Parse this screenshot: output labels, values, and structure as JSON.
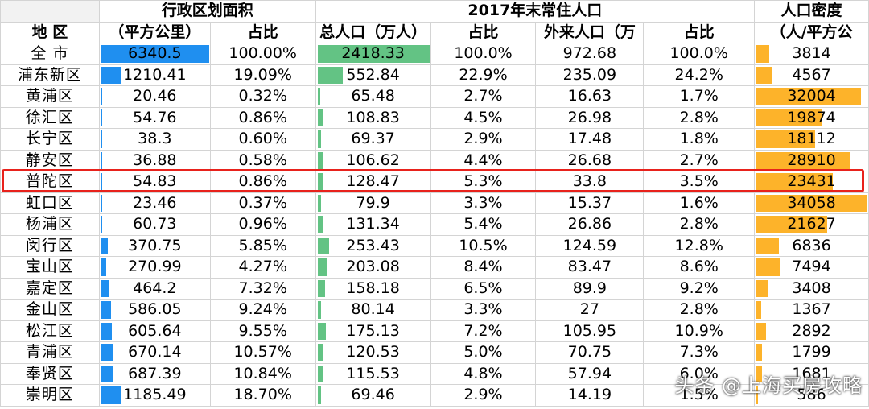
{
  "headers": {
    "area_group": "行政区划面积",
    "pop_group": "2017年末常住人口",
    "density_group": "人口密度",
    "district": "地  区",
    "area_unit": "（平方公里）",
    "area_share": "占比",
    "total_pop": "总人口（万人）",
    "total_share": "占比",
    "migrant_pop": "外来人口（万",
    "migrant_share": "占比",
    "density_unit": "（人/平方公"
  },
  "max": {
    "area": 6340.5,
    "pop": 2418.33,
    "density": 34058
  },
  "rows": [
    {
      "name": "全  市",
      "area": "6340.5",
      "area_pct": "100.00%",
      "pop": "2418.33",
      "pop_pct": "100.0%",
      "mig": "972.68",
      "mig_pct": "100.0%",
      "dens": "3814"
    },
    {
      "name": "浦东新区",
      "area": "1210.41",
      "area_pct": "19.09%",
      "pop": "552.84",
      "pop_pct": "22.9%",
      "mig": "235.09",
      "mig_pct": "24.2%",
      "dens": "4567"
    },
    {
      "name": "黄浦区",
      "area": "20.46",
      "area_pct": "0.32%",
      "pop": "65.48",
      "pop_pct": "2.7%",
      "mig": "16.63",
      "mig_pct": "1.7%",
      "dens": "32004"
    },
    {
      "name": "徐汇区",
      "area": "54.76",
      "area_pct": "0.86%",
      "pop": "108.83",
      "pop_pct": "4.5%",
      "mig": "26.98",
      "mig_pct": "2.8%",
      "dens": "19874"
    },
    {
      "name": "长宁区",
      "area": "38.3",
      "area_pct": "0.60%",
      "pop": "69.37",
      "pop_pct": "2.9%",
      "mig": "17.48",
      "mig_pct": "1.8%",
      "dens": "18112"
    },
    {
      "name": "静安区",
      "area": "36.88",
      "area_pct": "0.58%",
      "pop": "106.62",
      "pop_pct": "4.4%",
      "mig": "26.68",
      "mig_pct": "2.7%",
      "dens": "28910"
    },
    {
      "name": "普陀区",
      "area": "54.83",
      "area_pct": "0.86%",
      "pop": "128.47",
      "pop_pct": "5.3%",
      "mig": "33.8",
      "mig_pct": "3.5%",
      "dens": "23431"
    },
    {
      "name": "虹口区",
      "area": "23.46",
      "area_pct": "0.37%",
      "pop": "79.9",
      "pop_pct": "3.3%",
      "mig": "15.37",
      "mig_pct": "1.6%",
      "dens": "34058"
    },
    {
      "name": "杨浦区",
      "area": "60.73",
      "area_pct": "0.96%",
      "pop": "131.34",
      "pop_pct": "5.4%",
      "mig": "26.86",
      "mig_pct": "2.8%",
      "dens": "21627"
    },
    {
      "name": "闵行区",
      "area": "370.75",
      "area_pct": "5.85%",
      "pop": "253.43",
      "pop_pct": "10.5%",
      "mig": "124.59",
      "mig_pct": "12.8%",
      "dens": "6836"
    },
    {
      "name": "宝山区",
      "area": "270.99",
      "area_pct": "4.27%",
      "pop": "203.08",
      "pop_pct": "8.4%",
      "mig": "83.47",
      "mig_pct": "8.6%",
      "dens": "7494"
    },
    {
      "name": "嘉定区",
      "area": "464.2",
      "area_pct": "7.32%",
      "pop": "158.18",
      "pop_pct": "6.5%",
      "mig": "89.9",
      "mig_pct": "9.2%",
      "dens": "3408"
    },
    {
      "name": "金山区",
      "area": "586.05",
      "area_pct": "9.24%",
      "pop": "80.14",
      "pop_pct": "3.3%",
      "mig": "27",
      "mig_pct": "2.8%",
      "dens": "1367"
    },
    {
      "name": "松江区",
      "area": "605.64",
      "area_pct": "9.55%",
      "pop": "175.13",
      "pop_pct": "7.2%",
      "mig": "105.95",
      "mig_pct": "10.9%",
      "dens": "2892"
    },
    {
      "name": "青浦区",
      "area": "670.14",
      "area_pct": "10.57%",
      "pop": "120.53",
      "pop_pct": "5.0%",
      "mig": "70.75",
      "mig_pct": "7.3%",
      "dens": "1799"
    },
    {
      "name": "奉贤区",
      "area": "687.39",
      "area_pct": "10.84%",
      "pop": "115.53",
      "pop_pct": "4.8%",
      "mig": "57.94",
      "mig_pct": "6.0%",
      "dens": "1681"
    },
    {
      "name": "崇明区",
      "area": "1185.49",
      "area_pct": "18.70%",
      "pop": "69.46",
      "pop_pct": "2.9%",
      "mig": "14.19",
      "mig_pct": "1.5%",
      "dens": "586"
    }
  ],
  "highlight_row": "普陀区",
  "watermark": "头条 @上海买房攻略"
}
